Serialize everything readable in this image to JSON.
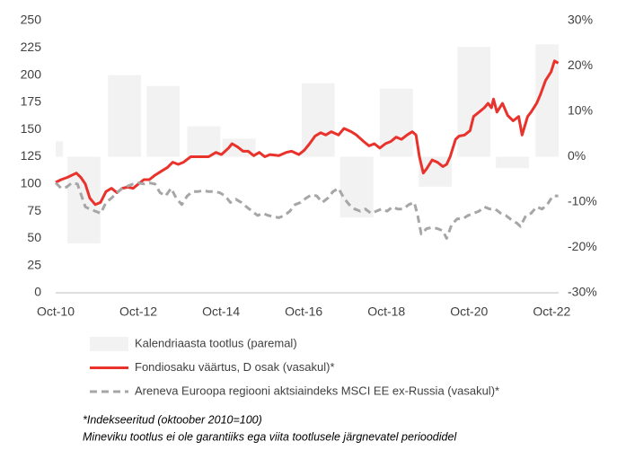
{
  "chart_data": {
    "type": "bar-line",
    "xlim": [
      0,
      146
    ],
    "xticks": [
      {
        "value": 0,
        "label": "Oct-10"
      },
      {
        "value": 24,
        "label": "Oct-12"
      },
      {
        "value": 48,
        "label": "Oct-14"
      },
      {
        "value": 72,
        "label": "Oct-16"
      },
      {
        "value": 96,
        "label": "Oct-18"
      },
      {
        "value": 120,
        "label": "Oct-20"
      },
      {
        "value": 144,
        "label": "Oct-22"
      }
    ],
    "ylim": [
      0,
      250
    ],
    "yticks": [
      0,
      25,
      50,
      75,
      100,
      125,
      150,
      175,
      200,
      225,
      250
    ],
    "y2lim": [
      -30,
      30
    ],
    "y2ticks": [
      {
        "value": -30,
        "label": "-30%"
      },
      {
        "value": -20,
        "label": "-20%"
      },
      {
        "value": -10,
        "label": "-10%"
      },
      {
        "value": 0,
        "label": "0%"
      },
      {
        "value": 10,
        "label": "10%"
      },
      {
        "value": 20,
        "label": "20%"
      },
      {
        "value": 30,
        "label": "30%"
      }
    ],
    "series": [
      {
        "name": "Kalendriaasta tootlus (paremal)",
        "type": "bar",
        "axis": "y2",
        "color": "#f2f2f2",
        "x": [
          -7.5,
          3.4,
          15.2,
          26.4,
          38.2,
          48.4,
          71.4,
          82.6,
          94.1,
          105.4,
          116.6,
          127.8,
          139.3
        ],
        "values": [
          3.4,
          -19.1,
          18,
          15.6,
          6.7,
          4,
          16.2,
          -13.4,
          15,
          -6.6,
          24.2,
          -2.5,
          24.8
        ]
      },
      {
        "name": "Fondiosaku väärtus, D osak (vasakul)*",
        "type": "line",
        "color": "#e8322b",
        "x": [
          0,
          1.6,
          3.4,
          6,
          7.3,
          8.6,
          9.9,
          11.5,
          13,
          14.6,
          16.2,
          17.8,
          19.3,
          20.9,
          22.5,
          24,
          25.6,
          27.2,
          28.8,
          30.8,
          32.4,
          34,
          35.6,
          37.1,
          39.2,
          41.8,
          44.4,
          46.5,
          48.1,
          50.2,
          51.2,
          52.8,
          54.4,
          55.9,
          57.5,
          59.1,
          60.7,
          62.2,
          64.8,
          66.9,
          68.5,
          70.6,
          72.2,
          73.7,
          75.3,
          76.9,
          78.4,
          80,
          82.1,
          83.7,
          85.8,
          87.3,
          89.4,
          91,
          92.5,
          94.1,
          95.7,
          97.3,
          98.8,
          100.4,
          102,
          103.5,
          104.6,
          105.6,
          106.7,
          107.7,
          109.3,
          110.8,
          112.4,
          113.5,
          114.5,
          116.1,
          117.1,
          118.7,
          120.3,
          121.3,
          122.9,
          124.4,
          125.5,
          126.5,
          127.1,
          128.1,
          129.7,
          131.2,
          132.8,
          134.4,
          135.4,
          137,
          138,
          139.6,
          140.7,
          142.2,
          143.8,
          144.8,
          145.9
        ],
        "values": [
          101.5,
          104,
          106,
          110,
          106,
          100,
          87,
          81,
          83,
          93,
          96,
          92,
          96,
          97,
          96,
          100,
          104,
          104,
          108,
          112,
          115,
          120,
          118,
          120,
          125,
          125,
          125,
          129,
          127,
          133,
          137,
          134,
          130,
          130,
          126,
          129,
          125,
          127,
          126,
          129,
          130,
          127,
          131,
          137,
          144,
          147,
          145,
          148,
          145,
          151,
          148,
          145,
          139,
          135,
          137,
          133,
          137,
          139,
          143,
          141,
          145,
          148,
          145,
          125,
          110,
          114,
          122,
          120,
          116,
          118,
          125,
          141,
          144,
          145,
          149,
          162,
          166,
          170,
          174,
          170,
          178,
          166,
          174,
          163,
          158,
          162,
          145,
          162,
          166,
          174,
          182,
          195,
          203,
          213,
          211
        ]
      },
      {
        "name": "Areneva Euroopa regiooni aktsiaindeks MSCI EE ex-Russia (vasakul)*",
        "type": "line",
        "dash": true,
        "color": "#a6a6a6",
        "x": [
          0,
          1.6,
          3.1,
          4.7,
          6.3,
          8.6,
          9.9,
          11.5,
          13.1,
          14.6,
          16.2,
          17.8,
          19.3,
          20.9,
          22.5,
          24.1,
          25.6,
          27.2,
          28.8,
          30.3,
          31.9,
          33.5,
          35,
          36.6,
          38.2,
          39.7,
          41.3,
          42.9,
          44.4,
          46,
          47.6,
          49.2,
          50.7,
          52.3,
          53.9,
          55.4,
          57,
          58.6,
          60.1,
          61.7,
          63.3,
          64.8,
          66.4,
          68,
          69.5,
          71.1,
          72.7,
          74.2,
          75.8,
          77.4,
          79,
          80.5,
          82.1,
          83.7,
          85.2,
          86.8,
          88.4,
          89.9,
          91.5,
          93.1,
          94.6,
          96.2,
          97.8,
          99.3,
          100.9,
          102.5,
          104.1,
          105.1,
          106.1,
          107.7,
          109.3,
          110.8,
          112.4,
          113.5,
          115,
          116.6,
          118.2,
          119.7,
          121.3,
          122.9,
          124.4,
          126,
          127.6,
          129.2,
          130.7,
          132.3,
          133.9,
          134.9,
          136.5,
          138,
          139.6,
          141.2,
          142.7,
          144.3,
          145.9
        ],
        "values": [
          101,
          96,
          97,
          101,
          100,
          79,
          77,
          75,
          73,
          83,
          87,
          92,
          96,
          98,
          100,
          101,
          100,
          101,
          100,
          92,
          89,
          96,
          87,
          81,
          89,
          93,
          93,
          94,
          93,
          93,
          92,
          89,
          83,
          86,
          83,
          79,
          75,
          71,
          73,
          71,
          70,
          69,
          71,
          75,
          81,
          83,
          87,
          90,
          89,
          83,
          87,
          93,
          96,
          87,
          81,
          77,
          75,
          77,
          73,
          75,
          77,
          75,
          79,
          77,
          77,
          81,
          83,
          71,
          54,
          59,
          60,
          59,
          57,
          50,
          63,
          68,
          68,
          71,
          73,
          75,
          79,
          77,
          77,
          73,
          71,
          67,
          64,
          61,
          71,
          73,
          79,
          77,
          81,
          89,
          89
        ]
      }
    ],
    "footnotes": [
      "*Indekseeritud (oktoober 2010=100)",
      "Mineviku tootlus ei ole garantiiks ega viita tootlusele järgnevatel perioodidel"
    ]
  }
}
